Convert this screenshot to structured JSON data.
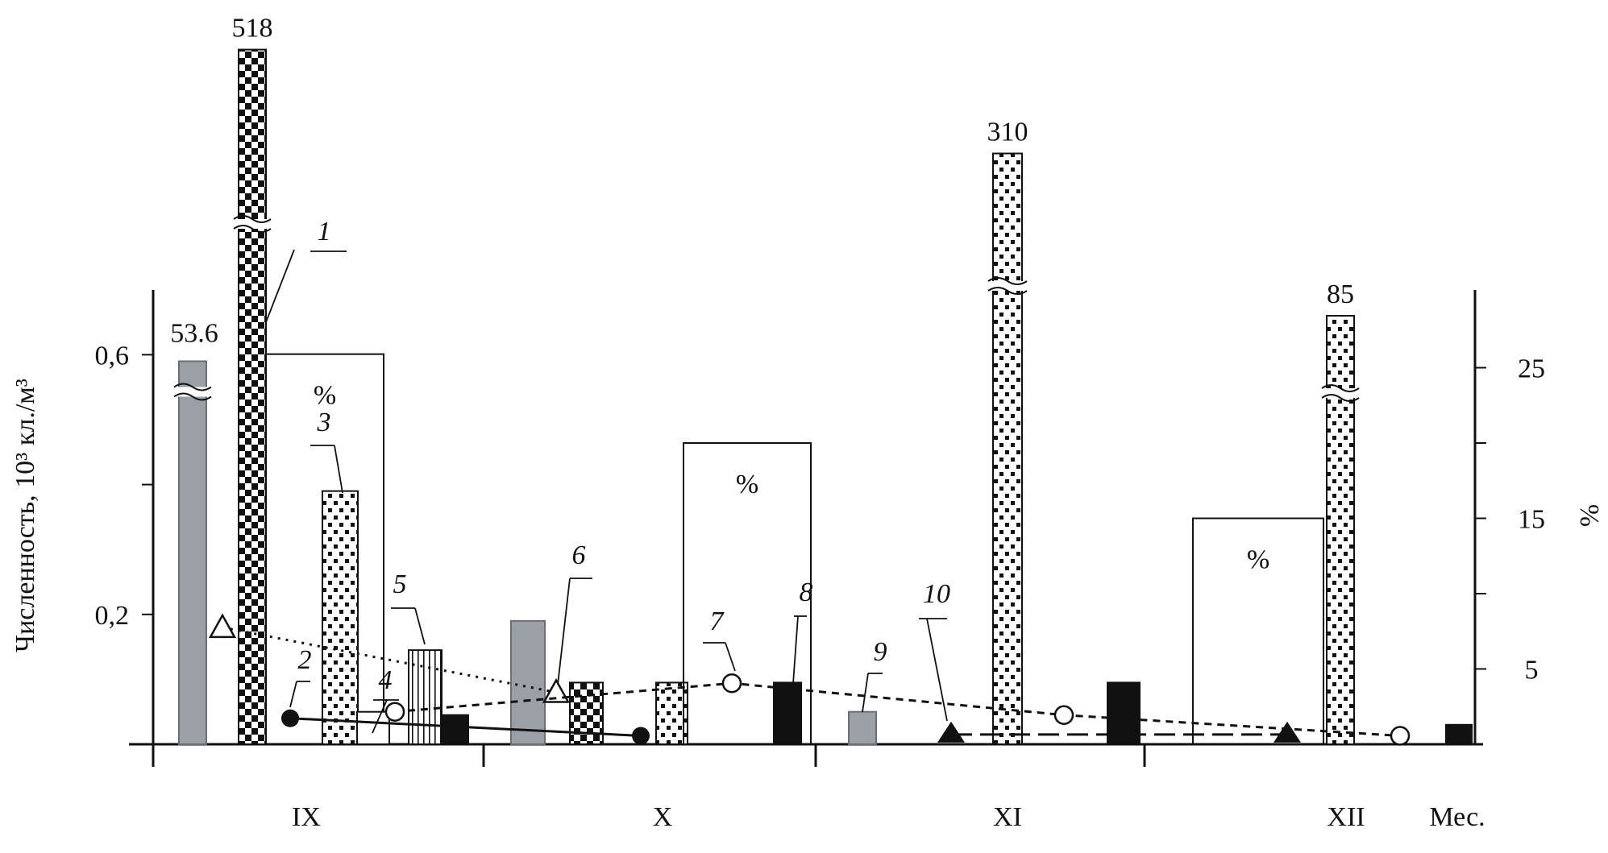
{
  "colors": {
    "gray_bar": "#9aa0a6",
    "black": "#111111",
    "white": "#ffffff"
  },
  "chart_data": {
    "type": "bar",
    "ylabel": "Численность, 10³ кл./м³",
    "y2label": "%",
    "xlabel": "Мес.",
    "left_axis": {
      "range": [
        0,
        0.7
      ],
      "ticks": [
        0.2,
        0.6
      ],
      "tick_labels": [
        "0,2",
        "0,6"
      ]
    },
    "right_axis": {
      "range": [
        0,
        30
      ],
      "ticks": [
        5,
        15,
        25
      ],
      "tick_labels": [
        "5",
        "15",
        "25"
      ]
    },
    "categories": [
      "IX",
      "X",
      "XI",
      "XII"
    ],
    "bars": [
      {
        "month": "IX",
        "pattern": "gray",
        "value": 0.59,
        "label": "53.6",
        "broken": true
      },
      {
        "month": "IX",
        "pattern": "checker",
        "value": 1.07,
        "label": "518",
        "broken": true
      },
      {
        "month": "IX",
        "pattern": "percent_box",
        "value": 25.9,
        "unit": "%",
        "label": "%"
      },
      {
        "month": "IX",
        "pattern": "dotted",
        "value": 0.39
      },
      {
        "month": "IX",
        "pattern": "white",
        "value": 0.05
      },
      {
        "month": "IX",
        "pattern": "striped",
        "value": 0.145
      },
      {
        "month": "IX",
        "pattern": "black",
        "value": 0.045
      },
      {
        "month": "X",
        "pattern": "gray",
        "value": 0.19
      },
      {
        "month": "X",
        "pattern": "checker",
        "value": 0.095
      },
      {
        "month": "X",
        "pattern": "dotted",
        "value": 0.095
      },
      {
        "month": "X",
        "pattern": "percent_box",
        "value": 20.0,
        "unit": "%",
        "label": "%"
      },
      {
        "month": "X",
        "pattern": "black",
        "value": 0.095
      },
      {
        "month": "XI",
        "pattern": "gray",
        "value": 0.05
      },
      {
        "month": "XI",
        "pattern": "dotted",
        "value": 0.91,
        "label": "310",
        "broken": true
      },
      {
        "month": "XI",
        "pattern": "black",
        "value": 0.095
      },
      {
        "month": "XII",
        "pattern": "percent_box",
        "value": 15.0,
        "unit": "%",
        "label": "%"
      },
      {
        "month": "XII",
        "pattern": "dotted",
        "value": 0.66,
        "label": "85",
        "broken": true
      },
      {
        "month": "XII",
        "pattern": "black",
        "value": 0.03
      }
    ],
    "series": [
      {
        "id": "triangles_open",
        "style": "dotted",
        "marker": "triangle-open",
        "points": [
          {
            "month": "IX",
            "y": 0.18
          },
          {
            "month": "X",
            "y": 0.08
          }
        ]
      },
      {
        "id": "circles_filled",
        "style": "solid",
        "marker": "circle-filled",
        "points": [
          {
            "month": "IX",
            "y": 0.04
          },
          {
            "month": "X",
            "y": 0.013
          }
        ]
      },
      {
        "id": "circles_open",
        "style": "dashed",
        "marker": "circle-open",
        "points": [
          {
            "month": "IX",
            "y": 0.05
          },
          {
            "month": "X",
            "y": 0.094
          },
          {
            "month": "XI",
            "y": 0.045
          },
          {
            "month": "XII",
            "y": 0.013
          }
        ]
      },
      {
        "id": "triangles_filled",
        "style": "long-dash",
        "marker": "triangle-filled",
        "points": [
          {
            "month": "XI",
            "y": 0.015
          },
          {
            "month": "XII",
            "y": 0.015
          }
        ]
      }
    ],
    "annotations": [
      {
        "label": "1"
      },
      {
        "label": "2"
      },
      {
        "label": "3"
      },
      {
        "label": "4"
      },
      {
        "label": "5"
      },
      {
        "label": "6"
      },
      {
        "label": "7"
      },
      {
        "label": "8"
      },
      {
        "label": "9"
      },
      {
        "label": "10"
      }
    ]
  }
}
